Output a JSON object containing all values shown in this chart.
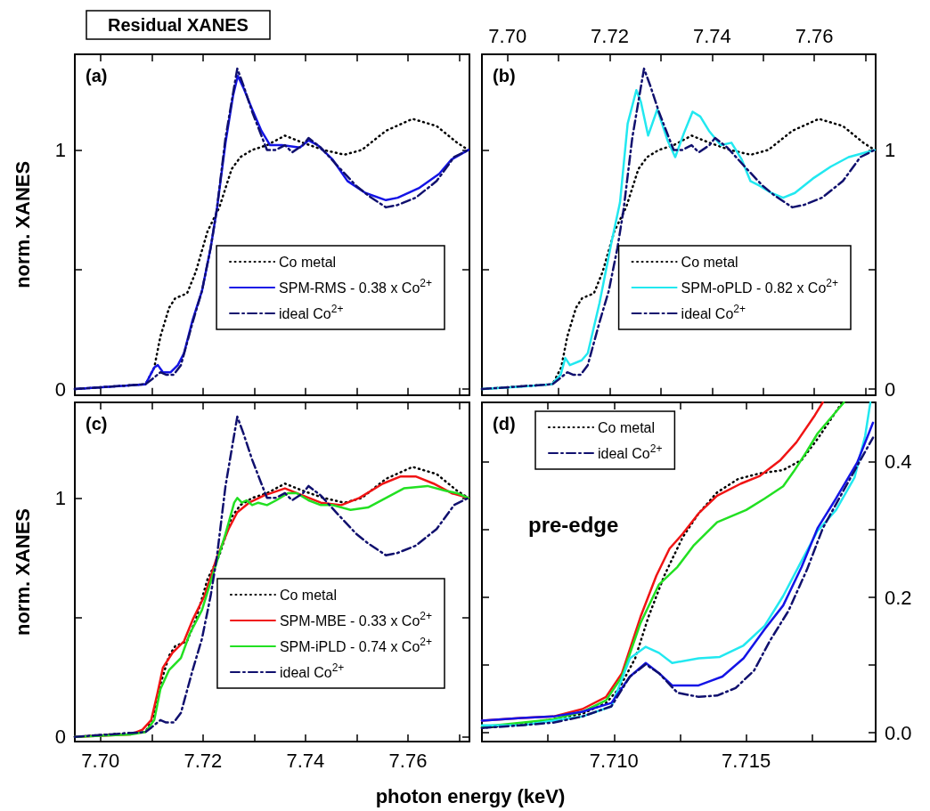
{
  "chart_data": [
    {
      "type": "line",
      "title": "Residual XANES",
      "ylabel": "norm. XANES",
      "annotations": [
        "(a)"
      ],
      "xlim": [
        7.695,
        7.772
      ],
      "ylim": [
        -0.025,
        1.4
      ],
      "xticks": [
        {
          "value": 7.7,
          "label": null
        },
        {
          "value": 7.71,
          "label": null
        },
        {
          "value": 7.72,
          "label": null
        },
        {
          "value": 7.73,
          "label": null
        },
        {
          "value": 7.74,
          "label": null
        },
        {
          "value": 7.75,
          "label": null
        },
        {
          "value": 7.76,
          "label": null
        },
        {
          "value": 7.77,
          "label": null
        }
      ],
      "yticks": [
        0,
        {
          "value": 0.5,
          "label": null
        },
        1
      ],
      "tick_labels": "y",
      "legend": "center right",
      "marker": "none",
      "series": [
        {
          "name": "Co metal",
          "color": "#000000",
          "line_style": "dotted",
          "x": [
            7.695,
            7.7088,
            7.7105,
            7.7117,
            7.7134,
            7.7146,
            7.7169,
            7.7186,
            7.7209,
            7.7232,
            7.7256,
            7.7273,
            7.7296,
            7.7325,
            7.736,
            7.7395,
            7.7435,
            7.7476,
            7.751,
            7.7557,
            7.7609,
            7.7656,
            7.7696,
            7.7718
          ],
          "values": [
            0,
            0.02,
            0.09,
            0.22,
            0.34,
            0.38,
            0.4,
            0.49,
            0.66,
            0.76,
            0.92,
            0.97,
            1.0,
            1.02,
            1.06,
            1.03,
            1.0,
            0.98,
            1.0,
            1.08,
            1.13,
            1.1,
            1.03,
            1.0
          ]
        },
        {
          "name": "SPM-RMS - 0.38 x Co$^{2+}$",
          "color": "#1414e6",
          "line_style": "solid",
          "x": [
            7.695,
            7.7088,
            7.7105,
            7.7112,
            7.7122,
            7.7137,
            7.7151,
            7.7163,
            7.718,
            7.7198,
            7.7215,
            7.7227,
            7.7244,
            7.7259,
            7.7268,
            7.7279,
            7.7296,
            7.7314,
            7.7331,
            7.7354,
            7.7389,
            7.7406,
            7.7424,
            7.7453,
            7.7482,
            7.7517,
            7.7557,
            7.758,
            7.7621,
            7.7661,
            7.7685,
            7.7718
          ],
          "values": [
            0,
            0.02,
            0.09,
            0.1,
            0.07,
            0.07,
            0.1,
            0.15,
            0.29,
            0.41,
            0.59,
            0.75,
            1.03,
            1.23,
            1.31,
            1.26,
            1.17,
            1.08,
            1.02,
            1.02,
            1.01,
            1.04,
            1.02,
            0.96,
            0.87,
            0.82,
            0.79,
            0.8,
            0.84,
            0.9,
            0.96,
            1.0
          ]
        },
        {
          "name": "ideal Co$^{2+}$",
          "color": "#10106e",
          "line_style": "dashdot",
          "x": [
            7.695,
            7.7088,
            7.71,
            7.7117,
            7.7128,
            7.7143,
            7.7157,
            7.718,
            7.7198,
            7.7215,
            7.7227,
            7.7244,
            7.7259,
            7.7267,
            7.7279,
            7.7296,
            7.7314,
            7.7325,
            7.7342,
            7.736,
            7.7374,
            7.7395,
            7.7406,
            7.743,
            7.7464,
            7.7499,
            7.7522,
            7.7557,
            7.758,
            7.7615,
            7.7656,
            7.769,
            7.7718
          ],
          "values": [
            0,
            0.02,
            0.04,
            0.07,
            0.06,
            0.06,
            0.1,
            0.28,
            0.41,
            0.59,
            0.75,
            1.05,
            1.24,
            1.34,
            1.27,
            1.16,
            1.06,
            1.0,
            1.0,
            1.02,
            0.99,
            1.02,
            1.05,
            1.01,
            0.93,
            0.85,
            0.81,
            0.76,
            0.77,
            0.8,
            0.87,
            0.97,
            1.0
          ]
        }
      ]
    },
    {
      "type": "line",
      "annotations": [
        "(b)"
      ],
      "xlim": [
        7.695,
        7.772
      ],
      "ylim": [
        -0.025,
        1.4
      ],
      "xticks": [
        {
          "value": 7.7,
          "label": "7.70"
        },
        {
          "value": 7.71,
          "label": null
        },
        {
          "value": 7.72,
          "label": "7.72"
        },
        {
          "value": 7.73,
          "label": null
        },
        {
          "value": 7.74,
          "label": "7.74"
        },
        {
          "value": 7.75,
          "label": null
        },
        {
          "value": 7.76,
          "label": "7.76"
        },
        {
          "value": 7.77,
          "label": null
        }
      ],
      "yticks": [
        0,
        {
          "value": 0.5,
          "label": null
        },
        1
      ],
      "legend": "center right",
      "marker": "none",
      "series": [
        {
          "name": "Co metal",
          "color": "#000000",
          "line_style": "dotted",
          "x": [
            7.695,
            7.7088,
            7.7105,
            7.7117,
            7.7134,
            7.7146,
            7.7169,
            7.7186,
            7.7209,
            7.7232,
            7.7256,
            7.7273,
            7.7296,
            7.7325,
            7.736,
            7.7395,
            7.7435,
            7.7476,
            7.751,
            7.7557,
            7.7609,
            7.7656,
            7.7696,
            7.7718
          ],
          "values": [
            0,
            0.02,
            0.09,
            0.22,
            0.34,
            0.38,
            0.4,
            0.49,
            0.66,
            0.76,
            0.92,
            0.97,
            1.0,
            1.02,
            1.06,
            1.03,
            1.0,
            0.98,
            1.0,
            1.08,
            1.13,
            1.1,
            1.03,
            1.0
          ]
        },
        {
          "name": "SPM-oPLD - 0.82 x Co$^{2+}$",
          "color": "#22e8f0",
          "line_style": "solid",
          "x": [
            7.695,
            7.7029,
            7.7087,
            7.7104,
            7.7113,
            7.7122,
            7.7145,
            7.7157,
            7.718,
            7.7203,
            7.722,
            7.7235,
            7.7252,
            7.7261,
            7.7275,
            7.7293,
            7.7313,
            7.7328,
            7.7345,
            7.7362,
            7.7377,
            7.7394,
            7.7417,
            7.7438,
            7.7458,
            7.7475,
            7.7493,
            7.7516,
            7.7539,
            7.7562,
            7.7597,
            7.7632,
            7.7667,
            7.7718
          ],
          "values": [
            0,
            0.01,
            0.02,
            0.06,
            0.13,
            0.1,
            0.12,
            0.15,
            0.36,
            0.61,
            0.78,
            1.11,
            1.25,
            1.2,
            1.06,
            1.17,
            1.04,
            0.97,
            1.07,
            1.16,
            1.14,
            1.08,
            1.02,
            1.03,
            0.96,
            0.87,
            0.85,
            0.82,
            0.8,
            0.82,
            0.88,
            0.93,
            0.97,
            1.0
          ]
        },
        {
          "name": "ideal Co$^{2+}$",
          "color": "#10106e",
          "line_style": "dashdot",
          "x": [
            7.695,
            7.7088,
            7.71,
            7.7117,
            7.7128,
            7.7143,
            7.7157,
            7.718,
            7.7198,
            7.7215,
            7.7227,
            7.7244,
            7.7259,
            7.7267,
            7.7279,
            7.7296,
            7.7314,
            7.7325,
            7.7342,
            7.736,
            7.7374,
            7.7395,
            7.7406,
            7.743,
            7.7464,
            7.7499,
            7.7522,
            7.7557,
            7.758,
            7.7615,
            7.7656,
            7.769,
            7.7718
          ],
          "values": [
            0,
            0.02,
            0.04,
            0.07,
            0.06,
            0.06,
            0.1,
            0.28,
            0.41,
            0.59,
            0.75,
            1.05,
            1.24,
            1.34,
            1.27,
            1.16,
            1.06,
            1.0,
            1.0,
            1.02,
            0.99,
            1.02,
            1.05,
            1.01,
            0.93,
            0.85,
            0.81,
            0.76,
            0.77,
            0.8,
            0.87,
            0.97,
            1.0
          ]
        }
      ]
    },
    {
      "type": "line",
      "xlabel": "photon energy (keV)",
      "ylabel": "norm. XANES",
      "annotations": [
        "(c)"
      ],
      "xlim": [
        7.695,
        7.772
      ],
      "ylim": [
        -0.02,
        1.4
      ],
      "xticks": [
        {
          "value": 7.7,
          "label": "7.70"
        },
        {
          "value": 7.71,
          "label": null
        },
        {
          "value": 7.72,
          "label": "7.72"
        },
        {
          "value": 7.73,
          "label": null
        },
        {
          "value": 7.74,
          "label": "7.74"
        },
        {
          "value": 7.75,
          "label": null
        },
        {
          "value": 7.76,
          "label": "7.76"
        },
        {
          "value": 7.77,
          "label": null
        }
      ],
      "yticks": [
        0,
        {
          "value": 0.5,
          "label": null
        },
        1
      ],
      "legend": "bottom right",
      "marker": "none",
      "series": [
        {
          "name": "Co metal",
          "color": "#000000",
          "line_style": "dotted",
          "x": [
            7.695,
            7.7088,
            7.7105,
            7.7117,
            7.7134,
            7.7146,
            7.7169,
            7.7186,
            7.7209,
            7.7232,
            7.7256,
            7.7273,
            7.7296,
            7.7325,
            7.736,
            7.7395,
            7.7435,
            7.7476,
            7.751,
            7.7557,
            7.7609,
            7.7656,
            7.7696,
            7.7718
          ],
          "values": [
            0,
            0.02,
            0.09,
            0.22,
            0.34,
            0.38,
            0.4,
            0.49,
            0.66,
            0.76,
            0.92,
            0.97,
            1.0,
            1.02,
            1.06,
            1.03,
            1.0,
            0.98,
            1.0,
            1.08,
            1.13,
            1.1,
            1.03,
            1.0
          ]
        },
        {
          "name": "SPM-MBE - 0.33 x Co$^{2+}$",
          "color": "#f01414",
          "line_style": "solid",
          "x": [
            7.695,
            7.7059,
            7.7082,
            7.7099,
            7.7111,
            7.7122,
            7.714,
            7.7163,
            7.718,
            7.7203,
            7.7227,
            7.725,
            7.7267,
            7.729,
            7.7319,
            7.736,
            7.7395,
            7.743,
            7.747,
            7.7505,
            7.7551,
            7.7586,
            7.7615,
            7.765,
            7.7685,
            7.7718
          ],
          "values": [
            0,
            0.01,
            0.03,
            0.07,
            0.18,
            0.29,
            0.35,
            0.4,
            0.49,
            0.59,
            0.75,
            0.87,
            0.94,
            0.98,
            1.01,
            1.04,
            1.01,
            0.98,
            0.97,
            1.0,
            1.06,
            1.09,
            1.09,
            1.06,
            1.02,
            1.0
          ]
        },
        {
          "name": "SPM-iPLD - 0.74 x Co$^{2+}$",
          "color": "#22e022",
          "line_style": "solid",
          "x": [
            7.695,
            7.7059,
            7.7088,
            7.7105,
            7.7117,
            7.7134,
            7.7157,
            7.7174,
            7.7198,
            7.7221,
            7.7244,
            7.7261,
            7.7267,
            7.7276,
            7.7285,
            7.7296,
            7.7308,
            7.7325,
            7.7343,
            7.7366,
            7.7383,
            7.7406,
            7.743,
            7.7453,
            7.7488,
            7.7522,
            7.7557,
            7.7592,
            7.7638,
            7.7673,
            7.7696,
            7.7718
          ],
          "values": [
            0,
            0.01,
            0.02,
            0.07,
            0.2,
            0.28,
            0.33,
            0.43,
            0.53,
            0.69,
            0.85,
            0.98,
            1.0,
            0.98,
            0.99,
            0.97,
            0.98,
            0.97,
            0.99,
            1.02,
            1.02,
            0.99,
            0.97,
            0.97,
            0.95,
            0.96,
            1.0,
            1.04,
            1.05,
            1.03,
            1.02,
            1.0
          ]
        },
        {
          "name": "ideal Co$^{2+}$",
          "color": "#10106e",
          "line_style": "dashdot",
          "x": [
            7.695,
            7.7088,
            7.71,
            7.7117,
            7.7128,
            7.7143,
            7.7157,
            7.718,
            7.7198,
            7.7215,
            7.7227,
            7.7244,
            7.7259,
            7.7267,
            7.7279,
            7.7296,
            7.7314,
            7.7325,
            7.7342,
            7.736,
            7.7374,
            7.7395,
            7.7406,
            7.743,
            7.7464,
            7.7499,
            7.7522,
            7.7557,
            7.758,
            7.7615,
            7.7656,
            7.769,
            7.7718
          ],
          "values": [
            0,
            0.02,
            0.04,
            0.07,
            0.06,
            0.06,
            0.1,
            0.28,
            0.41,
            0.59,
            0.75,
            1.05,
            1.24,
            1.34,
            1.27,
            1.16,
            1.06,
            1.0,
            1.0,
            1.02,
            0.99,
            1.02,
            1.05,
            1.01,
            0.93,
            0.85,
            0.81,
            0.76,
            0.77,
            0.8,
            0.87,
            0.97,
            1.0
          ]
        }
      ]
    },
    {
      "type": "line",
      "annotations": [
        "(d)",
        "pre-edge"
      ],
      "xlim": [
        7.705,
        7.7199
      ],
      "ylim": [
        -0.013,
        0.488
      ],
      "xticks": [
        {
          "value": 7.7075,
          "label": null
        },
        {
          "value": 7.71,
          "label": "7.710"
        },
        {
          "value": 7.7125,
          "label": null
        },
        {
          "value": 7.715,
          "label": "7.715"
        },
        {
          "value": 7.7175,
          "label": null
        }
      ],
      "yticks": [
        {
          "value": 0,
          "label": "0.0"
        },
        {
          "value": 0.1,
          "label": null
        },
        0.2,
        {
          "value": 0.3,
          "label": null
        },
        0.4
      ],
      "legend": "top left",
      "marker": "none",
      "series": [
        {
          "name": "Co metal",
          "color": "#000000",
          "line_style": "dotted",
          "x": [
            7.705,
            7.7065,
            7.7077,
            7.7088,
            7.7097,
            7.7102,
            7.7108,
            7.7113,
            7.7119,
            7.7126,
            7.7132,
            7.7139,
            7.7147,
            7.7155,
            7.7164,
            7.7171,
            7.7177,
            7.7186
          ],
          "values": [
            0.007,
            0.013,
            0.02,
            0.028,
            0.044,
            0.066,
            0.11,
            0.171,
            0.232,
            0.289,
            0.324,
            0.355,
            0.375,
            0.383,
            0.388,
            0.403,
            0.434,
            0.486
          ]
        },
        {
          "color": "#f01414",
          "line_style": "solid",
          "x": [
            7.705,
            7.7065,
            7.7077,
            7.7088,
            7.7097,
            7.7103,
            7.711,
            7.7116,
            7.7121,
            7.7126,
            7.7132,
            7.7139,
            7.7148,
            7.7155,
            7.7163,
            7.7169,
            7.7176,
            7.7179
          ],
          "values": [
            0.018,
            0.022,
            0.024,
            0.035,
            0.053,
            0.088,
            0.171,
            0.232,
            0.272,
            0.294,
            0.324,
            0.35,
            0.368,
            0.379,
            0.403,
            0.429,
            0.469,
            0.488
          ]
        },
        {
          "color": "#22e022",
          "line_style": "solid",
          "x": [
            7.705,
            7.7065,
            7.7077,
            7.7088,
            7.7097,
            7.7103,
            7.711,
            7.7117,
            7.7124,
            7.713,
            7.7139,
            7.715,
            7.7157,
            7.7164,
            7.7168,
            7.7173,
            7.7177,
            7.7187
          ],
          "values": [
            0.009,
            0.015,
            0.02,
            0.031,
            0.048,
            0.083,
            0.162,
            0.219,
            0.245,
            0.276,
            0.311,
            0.329,
            0.346,
            0.364,
            0.386,
            0.416,
            0.442,
            0.488
          ]
        },
        {
          "color": "#22e8f0",
          "line_style": "solid",
          "x": [
            7.705,
            7.7065,
            7.7077,
            7.7088,
            7.7099,
            7.7106,
            7.7112,
            7.7117,
            7.7122,
            7.7132,
            7.714,
            7.7149,
            7.7157,
            7.7164,
            7.7171,
            7.7177,
            7.7184,
            7.7191,
            7.7195,
            7.7197
          ],
          "values": [
            0.011,
            0.011,
            0.018,
            0.024,
            0.039,
            0.11,
            0.127,
            0.118,
            0.103,
            0.11,
            0.112,
            0.129,
            0.158,
            0.202,
            0.254,
            0.298,
            0.329,
            0.377,
            0.438,
            0.488
          ]
        },
        {
          "color": "#1414e6",
          "line_style": "solid",
          "x": [
            7.705,
            7.7065,
            7.7077,
            7.7088,
            7.7099,
            7.7106,
            7.7112,
            7.7117,
            7.7122,
            7.7132,
            7.7141,
            7.7149,
            7.7157,
            7.7164,
            7.7171,
            7.7177,
            7.7184,
            7.7192,
            7.7198
          ],
          "values": [
            0.018,
            0.022,
            0.024,
            0.031,
            0.044,
            0.083,
            0.103,
            0.088,
            0.07,
            0.07,
            0.083,
            0.11,
            0.153,
            0.188,
            0.245,
            0.302,
            0.346,
            0.399,
            0.458
          ]
        },
        {
          "name": "ideal Co$^{2+}$",
          "color": "#10106e",
          "line_style": "dashdot",
          "x": [
            7.705,
            7.7065,
            7.7077,
            7.7088,
            7.7099,
            7.7106,
            7.7112,
            7.7117,
            7.7124,
            7.7132,
            7.7139,
            7.7146,
            7.7153,
            7.7159,
            7.7166,
            7.7173,
            7.7179,
            7.7187,
            7.7198
          ],
          "values": [
            0.007,
            0.011,
            0.015,
            0.024,
            0.039,
            0.083,
            0.101,
            0.088,
            0.059,
            0.053,
            0.055,
            0.066,
            0.092,
            0.136,
            0.18,
            0.241,
            0.302,
            0.359,
            0.436
          ]
        }
      ]
    }
  ]
}
